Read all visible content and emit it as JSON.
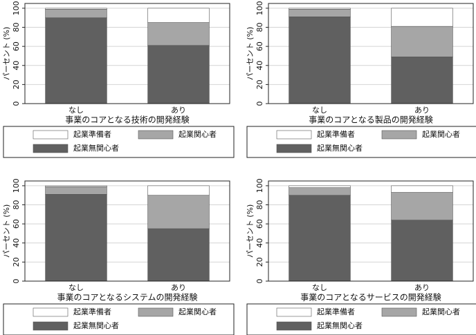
{
  "chart_data": [
    {
      "type": "bar",
      "stacked": true,
      "xlabel": "事業のコアとなる技術の開発経験",
      "ylabel": "パーセント (%)",
      "categories": [
        "なし",
        "あり"
      ],
      "series": [
        {
          "name": "起業無関心者",
          "color": "#606060",
          "values": [
            90,
            61
          ]
        },
        {
          "name": "起業関心者",
          "color": "#a6a6a6",
          "values": [
            9,
            24
          ]
        },
        {
          "name": "起業準備者",
          "color": "#ffffff",
          "values": [
            1,
            15
          ]
        }
      ],
      "ylim": [
        0,
        105
      ],
      "yticks": [
        0,
        20,
        40,
        60,
        80,
        100
      ],
      "grid": true
    },
    {
      "type": "bar",
      "stacked": true,
      "xlabel": "事業のコアとなる製品の開発経験",
      "ylabel": "パーセント (%)",
      "categories": [
        "なし",
        "あり"
      ],
      "series": [
        {
          "name": "起業無関心者",
          "color": "#606060",
          "values": [
            91,
            49
          ]
        },
        {
          "name": "起業関心者",
          "color": "#a6a6a6",
          "values": [
            8,
            32
          ]
        },
        {
          "name": "起業準備者",
          "color": "#ffffff",
          "values": [
            1,
            19
          ]
        }
      ],
      "ylim": [
        0,
        105
      ],
      "yticks": [
        0,
        20,
        40,
        60,
        80,
        100
      ],
      "grid": true
    },
    {
      "type": "bar",
      "stacked": true,
      "xlabel": "事業のコアとなるシステムの開発経験",
      "ylabel": "パーセント (%)",
      "categories": [
        "なし",
        "あり"
      ],
      "series": [
        {
          "name": "起業無関心者",
          "color": "#606060",
          "values": [
            91,
            55
          ]
        },
        {
          "name": "起業関心者",
          "color": "#a6a6a6",
          "values": [
            8,
            35
          ]
        },
        {
          "name": "起業準備者",
          "color": "#ffffff",
          "values": [
            1,
            10
          ]
        }
      ],
      "ylim": [
        0,
        105
      ],
      "yticks": [
        0,
        20,
        40,
        60,
        80,
        100
      ],
      "grid": true
    },
    {
      "type": "bar",
      "stacked": true,
      "xlabel": "事業のコアとなるサービスの開発経験",
      "ylabel": "パーセント (%)",
      "categories": [
        "なし",
        "あり"
      ],
      "series": [
        {
          "name": "起業無関心者",
          "color": "#606060",
          "values": [
            90,
            64
          ]
        },
        {
          "name": "起業関心者",
          "color": "#a6a6a6",
          "values": [
            8,
            29
          ]
        },
        {
          "name": "起業準備者",
          "color": "#ffffff",
          "values": [
            2,
            7
          ]
        }
      ],
      "ylim": [
        0,
        105
      ],
      "yticks": [
        0,
        20,
        40,
        60,
        80,
        100
      ],
      "grid": true
    }
  ]
}
